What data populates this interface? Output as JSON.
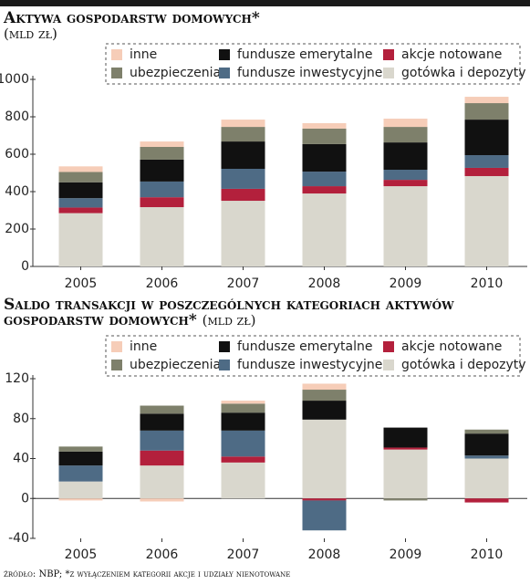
{
  "chart_data": [
    {
      "type": "bar",
      "stacked": true,
      "title": "Aktywa gospodarstw domowych*",
      "subtitle": "(mld zł)",
      "categories": [
        "2005",
        "2006",
        "2007",
        "2008",
        "2009",
        "2010"
      ],
      "ylim": [
        0,
        1000
      ],
      "yticks": [
        0,
        200,
        400,
        600,
        800,
        1000
      ],
      "series": [
        {
          "name": "gotówka i depozyty",
          "color": "#d9d7cd",
          "values": [
            285,
            317,
            351,
            390,
            429,
            483
          ]
        },
        {
          "name": "akcje notowane",
          "color": "#b3203c",
          "values": [
            30,
            53,
            64,
            39,
            34,
            44
          ]
        },
        {
          "name": "fundusze inwestycyjne",
          "color": "#4e6b85",
          "values": [
            50,
            84,
            107,
            78,
            54,
            68
          ]
        },
        {
          "name": "fundusze emerytalne",
          "color": "#111111",
          "values": [
            85,
            117,
            146,
            147,
            146,
            190
          ]
        },
        {
          "name": "ubezpieczenia",
          "color": "#7e806b",
          "values": [
            55,
            68,
            78,
            83,
            83,
            88
          ]
        },
        {
          "name": "inne",
          "color": "#f6cdb8",
          "values": [
            30,
            29,
            39,
            29,
            44,
            34
          ]
        }
      ]
    },
    {
      "type": "bar",
      "stacked": true,
      "title": "Saldo transakcji w poszczególnych kategoriach aktywów gospodarstw domowych*",
      "subtitle": "(mld zł)",
      "categories": [
        "2005",
        "2006",
        "2007",
        "2008",
        "2009",
        "2010"
      ],
      "ylim": [
        -40,
        120
      ],
      "yticks": [
        -40,
        0,
        40,
        80,
        120
      ],
      "series": [
        {
          "name": "gotówka i depozyty",
          "color": "#d9d7cd",
          "values": [
            17,
            33,
            36,
            79,
            49,
            40
          ]
        },
        {
          "name": "akcje notowane",
          "color": "#b3203c",
          "values": [
            0,
            15,
            6,
            -2,
            2,
            -4
          ]
        },
        {
          "name": "fundusze inwestycyjne",
          "color": "#4e6b85",
          "values": [
            16,
            20,
            26,
            -30,
            0,
            3
          ]
        },
        {
          "name": "fundusze emerytalne",
          "color": "#111111",
          "values": [
            14,
            17,
            18,
            19,
            20,
            22
          ]
        },
        {
          "name": "ubezpieczenia",
          "color": "#7e806b",
          "values": [
            5,
            8,
            9,
            11,
            -2,
            4
          ]
        },
        {
          "name": "inne",
          "color": "#f6cdb8",
          "values": [
            -2,
            -3,
            3,
            6,
            0,
            0
          ]
        }
      ]
    }
  ],
  "footnote": "źródło: NBP; *z wyłączeniem kategorii akcje i udziały nienotowane"
}
